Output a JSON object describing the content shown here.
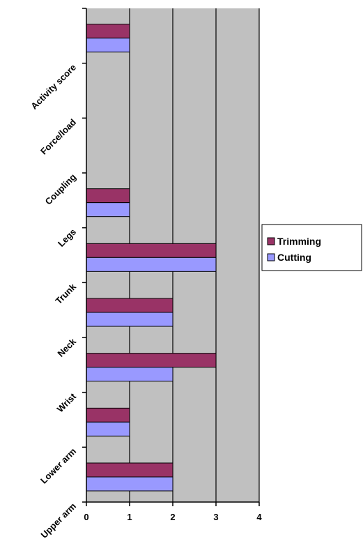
{
  "chart_data": {
    "type": "bar",
    "orientation": "horizontal",
    "categories": [
      "Upper arm",
      "Lower arm",
      "Wrist",
      "Neck",
      "Trunk",
      "Legs",
      "Coupling",
      "Force/load",
      "Activity score"
    ],
    "series": [
      {
        "name": "Trimming",
        "color": "#993366",
        "values": [
          2,
          1,
          3,
          2,
          3,
          1,
          0,
          0,
          1
        ]
      },
      {
        "name": "Cutting",
        "color": "#9999ff",
        "values": [
          2,
          1,
          2,
          2,
          3,
          1,
          0,
          0,
          1
        ]
      }
    ],
    "xlim": [
      0,
      4
    ],
    "xticks": [
      "0",
      "1",
      "2",
      "3",
      "4"
    ],
    "grid": "vertical",
    "plot_background": "#c0c0c0",
    "legend_position": "right"
  }
}
